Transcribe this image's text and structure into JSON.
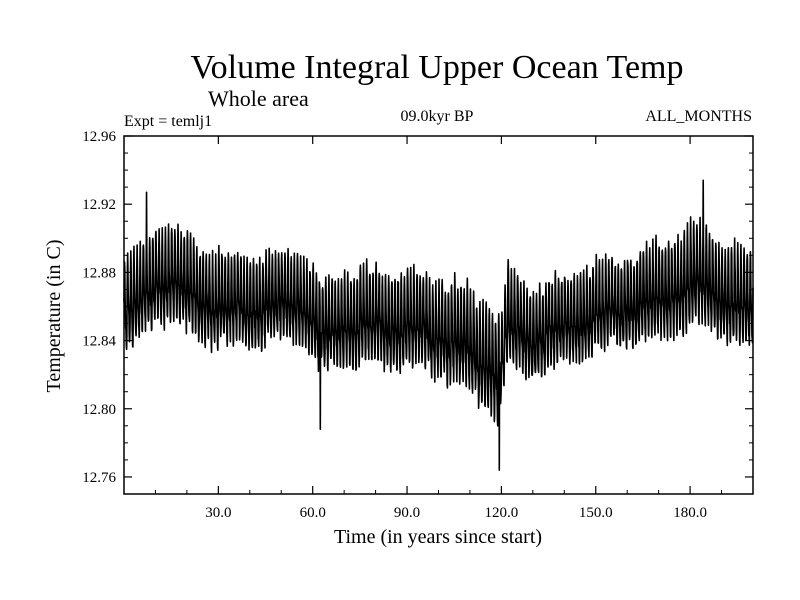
{
  "chart_data": {
    "type": "line",
    "title": "Volume Integral Upper Ocean Temp",
    "subtitle": "Whole area",
    "expt_label": "Expt = temlj1",
    "period_label": "09.0kyr BP",
    "months_label": "ALL_MONTHS",
    "xlabel": "Time (in years since start)",
    "ylabel": "Temperature (in C)",
    "xlim": [
      0,
      200
    ],
    "ylim": [
      12.75,
      12.96
    ],
    "xticks": [
      {
        "value": 30,
        "label": "30.0"
      },
      {
        "value": 60,
        "label": "60.0"
      },
      {
        "value": 90,
        "label": "90.0"
      },
      {
        "value": 120,
        "label": "120.0"
      },
      {
        "value": 150,
        "label": "150.0"
      },
      {
        "value": 180,
        "label": "180.0"
      }
    ],
    "yticks": [
      {
        "value": 12.96,
        "label": "12.96"
      },
      {
        "value": 12.92,
        "label": "12.92"
      },
      {
        "value": 12.88,
        "label": "12.88"
      },
      {
        "value": 12.84,
        "label": "12.84"
      },
      {
        "value": 12.8,
        "label": "12.80"
      },
      {
        "value": 12.76,
        "label": "12.76"
      }
    ],
    "sampling": "monthly",
    "trend": {
      "x": [
        0,
        5,
        10,
        15,
        20,
        30,
        40,
        50,
        55,
        60,
        62,
        70,
        80,
        90,
        100,
        105,
        110,
        115,
        118,
        120,
        122,
        125,
        130,
        140,
        150,
        160,
        170,
        180,
        185,
        190,
        195,
        200
      ],
      "y": [
        12.855,
        12.865,
        12.876,
        12.876,
        12.87,
        12.862,
        12.86,
        12.864,
        12.864,
        12.858,
        12.846,
        12.852,
        12.852,
        12.85,
        12.846,
        12.842,
        12.836,
        12.83,
        12.822,
        12.822,
        12.852,
        12.848,
        12.842,
        12.85,
        12.856,
        12.862,
        12.866,
        12.874,
        12.876,
        12.868,
        12.862,
        12.86
      ]
    },
    "amplitude": {
      "x": [
        0,
        20,
        40,
        60,
        80,
        100,
        118,
        120,
        140,
        160,
        180,
        200
      ],
      "y": [
        0.026,
        0.026,
        0.024,
        0.024,
        0.026,
        0.026,
        0.03,
        0.026,
        0.024,
        0.024,
        0.028,
        0.026
      ]
    },
    "noise": 0.004,
    "extremes": [
      {
        "x": 7.2,
        "y": 12.927
      },
      {
        "x": 62.4,
        "y": 12.788
      },
      {
        "x": 119.3,
        "y": 12.764
      },
      {
        "x": 184.2,
        "y": 12.934
      }
    ],
    "series": [
      {
        "name": "Volume Integral Upper Ocean Temp",
        "color": "#000000"
      }
    ]
  }
}
